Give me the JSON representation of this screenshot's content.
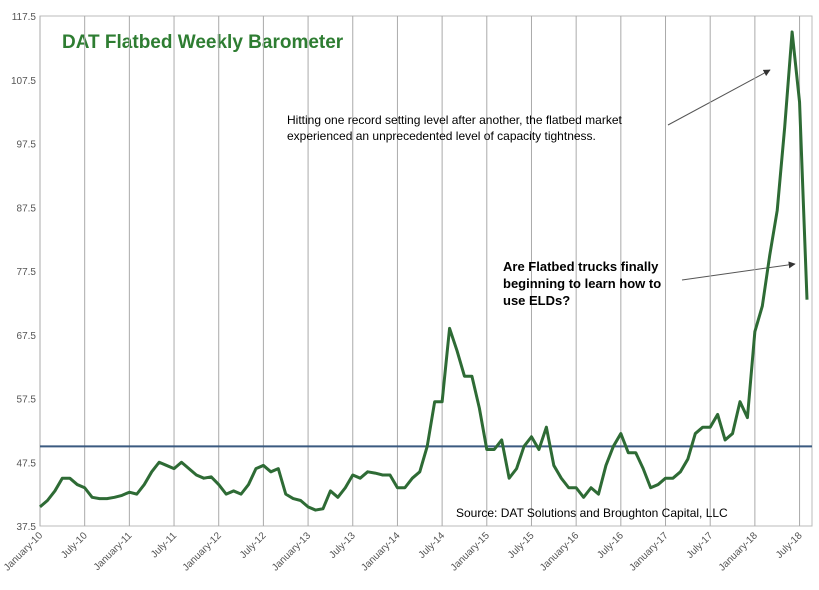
{
  "chart_data": {
    "type": "line",
    "title": "DAT Flatbed Weekly Barometer",
    "x": [
      "2010-01",
      "2010-02",
      "2010-03",
      "2010-04",
      "2010-05",
      "2010-06",
      "2010-07",
      "2010-08",
      "2010-09",
      "2010-10",
      "2010-11",
      "2010-12",
      "2011-01",
      "2011-02",
      "2011-03",
      "2011-04",
      "2011-05",
      "2011-06",
      "2011-07",
      "2011-08",
      "2011-09",
      "2011-10",
      "2011-11",
      "2011-12",
      "2012-01",
      "2012-02",
      "2012-03",
      "2012-04",
      "2012-05",
      "2012-06",
      "2012-07",
      "2012-08",
      "2012-09",
      "2012-10",
      "2012-11",
      "2012-12",
      "2013-01",
      "2013-02",
      "2013-03",
      "2013-04",
      "2013-05",
      "2013-06",
      "2013-07",
      "2013-08",
      "2013-09",
      "2013-10",
      "2013-11",
      "2013-12",
      "2014-01",
      "2014-02",
      "2014-03",
      "2014-04",
      "2014-05",
      "2014-06",
      "2014-07",
      "2014-08",
      "2014-09",
      "2014-10",
      "2014-11",
      "2014-12",
      "2015-01",
      "2015-02",
      "2015-03",
      "2015-04",
      "2015-05",
      "2015-06",
      "2015-07",
      "2015-08",
      "2015-09",
      "2015-10",
      "2015-11",
      "2015-12",
      "2016-01",
      "2016-02",
      "2016-03",
      "2016-04",
      "2016-05",
      "2016-06",
      "2016-07",
      "2016-08",
      "2016-09",
      "2016-10",
      "2016-11",
      "2016-12",
      "2017-01",
      "2017-02",
      "2017-03",
      "2017-04",
      "2017-05",
      "2017-06",
      "2017-07",
      "2017-08",
      "2017-09",
      "2017-10",
      "2017-11",
      "2017-12",
      "2018-01",
      "2018-02",
      "2018-03",
      "2018-04",
      "2018-05",
      "2018-06",
      "2018-07",
      "2018-08"
    ],
    "series": [
      {
        "name": "DAT Flatbed Weekly Barometer",
        "color": "#2e6b35",
        "values": [
          40.5,
          41.5,
          43,
          45,
          45,
          44,
          43.5,
          42,
          41.8,
          41.8,
          42,
          42.3,
          42.8,
          42.5,
          44,
          46,
          47.5,
          47,
          46.5,
          47.5,
          46.5,
          45.5,
          45,
          45.2,
          44,
          42.5,
          43,
          42.5,
          44,
          46.5,
          47,
          46,
          46.5,
          42.5,
          41.8,
          41.5,
          40.5,
          40,
          40.2,
          43,
          42,
          43.5,
          45.5,
          45,
          46,
          45.8,
          45.5,
          45.5,
          43.5,
          43.5,
          45,
          46,
          50,
          57,
          57,
          68.5,
          65,
          61,
          61,
          56,
          49.5,
          49.5,
          51,
          45,
          46.5,
          50,
          51.5,
          49.5,
          53,
          47,
          45,
          43.5,
          43.5,
          42,
          43.5,
          42.5,
          47,
          50,
          52,
          49,
          49,
          46.5,
          43.5,
          44,
          45,
          45,
          46,
          48,
          52,
          53,
          53,
          55,
          51,
          52,
          57,
          54.5,
          68,
          72,
          80,
          87,
          100,
          115,
          104,
          73
        ]
      }
    ],
    "xlim": [
      "2010-01",
      "2018-08"
    ],
    "xticks": [
      {
        "value": "2010-01",
        "label": "January-10"
      },
      {
        "value": "2010-07",
        "label": "July-10"
      },
      {
        "value": "2011-01",
        "label": "January-11"
      },
      {
        "value": "2011-07",
        "label": "July-11"
      },
      {
        "value": "2012-01",
        "label": "January-12"
      },
      {
        "value": "2012-07",
        "label": "July-12"
      },
      {
        "value": "2013-01",
        "label": "January-13"
      },
      {
        "value": "2013-07",
        "label": "July-13"
      },
      {
        "value": "2014-01",
        "label": "January-14"
      },
      {
        "value": "2014-07",
        "label": "July-14"
      },
      {
        "value": "2015-01",
        "label": "January-15"
      },
      {
        "value": "2015-07",
        "label": "July-15"
      },
      {
        "value": "2016-01",
        "label": "January-16"
      },
      {
        "value": "2016-07",
        "label": "July-16"
      },
      {
        "value": "2017-01",
        "label": "January-17"
      },
      {
        "value": "2017-07",
        "label": "July-17"
      },
      {
        "value": "2018-01",
        "label": "January-18"
      },
      {
        "value": "2018-07",
        "label": "July-18"
      }
    ],
    "ylim": [
      37.5,
      117.5
    ],
    "yticks": [
      37.5,
      47.5,
      57.5,
      67.5,
      77.5,
      87.5,
      97.5,
      107.5,
      117.5
    ],
    "reference_line": {
      "value": 50,
      "color": "#3b5a80"
    },
    "grid": "x",
    "annotations": [
      {
        "lines": [
          "Hitting one record setting level after another, the flatbed market",
          "experienced an unprecedented level of capacity tightness."
        ]
      },
      {
        "lines": [
          "Are Flatbed trucks finally",
          "beginning to learn how to",
          "use ELDs?"
        ]
      },
      {
        "lines": [
          "Source: DAT Solutions and Broughton Capital, LLC"
        ]
      }
    ]
  }
}
